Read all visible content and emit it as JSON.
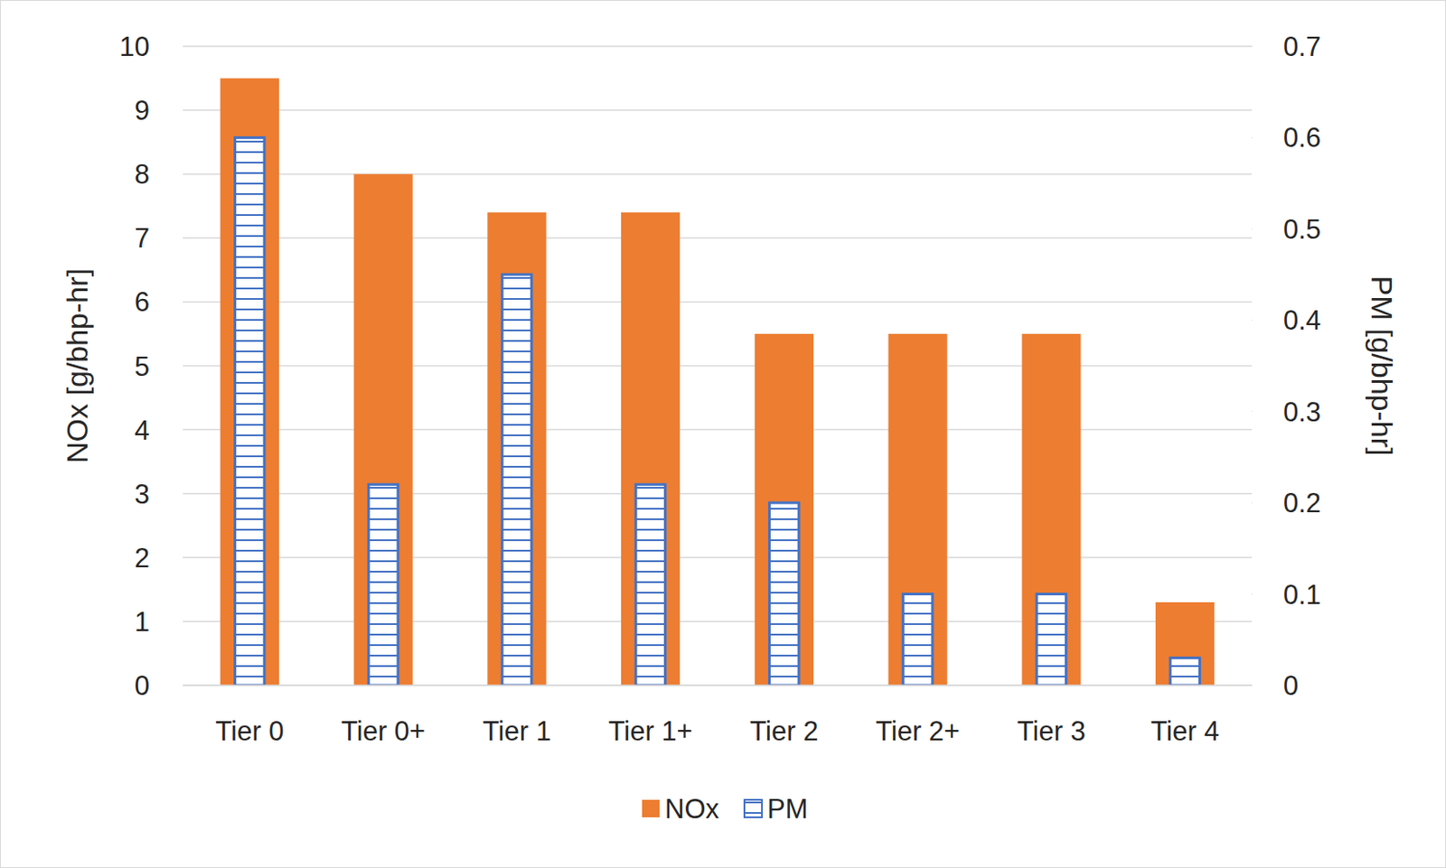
{
  "chart_data": {
    "type": "bar",
    "categories": [
      "Tier 0",
      "Tier 0+",
      "Tier 1",
      "Tier 1+",
      "Tier 2",
      "Tier 2+",
      "Tier 3",
      "Tier 4"
    ],
    "series": [
      {
        "name": "NOx",
        "color": "#ed7d31",
        "values": [
          9.5,
          8,
          7.4,
          7.4,
          5.5,
          5.5,
          5.5,
          1.3
        ]
      },
      {
        "name": "PM",
        "color": "#4472c4",
        "axis": "y2",
        "values": [
          0.6,
          0.22,
          0.45,
          0.22,
          0.2,
          0.1,
          0.1,
          0.03
        ]
      }
    ],
    "y_label": "NOx [g/bhp-hr]",
    "y2_label": "PM [g/bhp-hr]",
    "ylim": [
      0,
      10
    ],
    "yticks": [
      0,
      1,
      2,
      3,
      4,
      5,
      6,
      7,
      8,
      9,
      10
    ],
    "y2lim": [
      0,
      0.7
    ],
    "y2ticks": [
      0,
      0.1,
      0.2,
      0.3,
      0.4,
      0.5,
      0.6,
      0.7
    ],
    "grid": true,
    "legend": "bottom"
  }
}
